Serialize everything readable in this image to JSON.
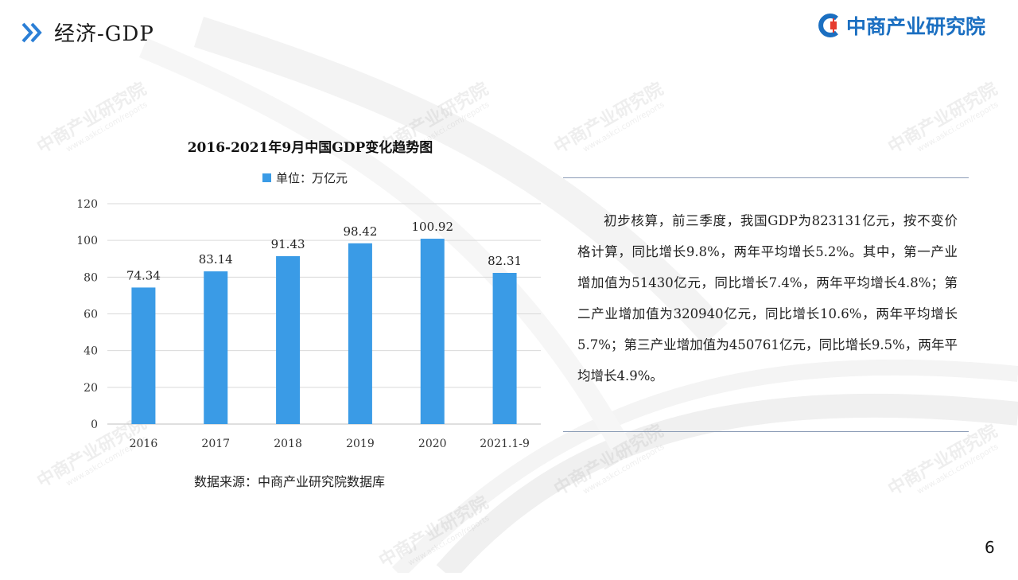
{
  "header": {
    "title": "经济-GDP",
    "logo_text": "中商产业研究院"
  },
  "chart_data": {
    "type": "bar",
    "title": "2016-2021年9月中国GDP变化趋势图",
    "legend": [
      "单位：万亿元"
    ],
    "categories": [
      "2016",
      "2017",
      "2018",
      "2019",
      "2020",
      "2021.1-9"
    ],
    "values": [
      74.34,
      83.14,
      91.43,
      98.42,
      100.92,
      82.31
    ],
    "data_labels": [
      "74.34",
      "83.14",
      "91.43",
      "98.42",
      "100.92",
      "82.31"
    ],
    "yticks": [
      "0",
      "20",
      "40",
      "60",
      "80",
      "100",
      "120"
    ],
    "ylim": [
      0,
      120
    ],
    "grid": true,
    "legend_position": "top",
    "bar_color": "#3a9be6"
  },
  "source": "数据来源：中商产业研究院数据库",
  "paragraph": "初步核算，前三季度，我国GDP为823131亿元，按不变价格计算，同比增长9.8%，两年平均增长5.2%。其中，第一产业增加值为51430亿元，同比增长7.4%，两年平均增长4.8%；第二产业增加值为320940亿元，同比增长10.6%，两年平均增长5.7%；第三产业增加值为450761亿元，同比增长9.5%，两年平均增长4.9%。",
  "page_number": "6",
  "watermark": {
    "cn": "中商产业研究院",
    "url": "www.askci.com/reports"
  },
  "colors": {
    "accent": "#1b6fc1",
    "bar": "#3a9be6",
    "logo_red": "#e63b2e"
  }
}
